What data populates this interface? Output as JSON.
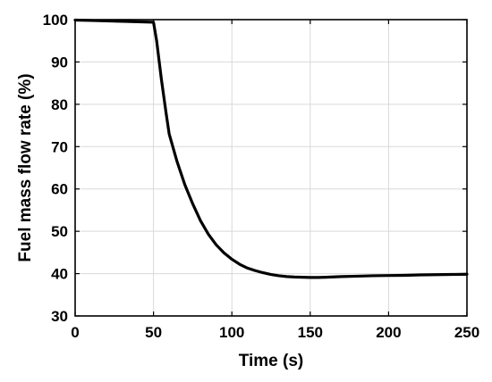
{
  "chart_data": {
    "type": "line",
    "title": "",
    "xlabel": "Time (s)",
    "ylabel": "Fuel mass flow rate (%)",
    "xlim": [
      0,
      250
    ],
    "ylim": [
      30,
      100
    ],
    "xticks": [
      0,
      50,
      100,
      150,
      200,
      250
    ],
    "yticks": [
      30,
      40,
      50,
      60,
      70,
      80,
      90,
      100
    ],
    "grid": true,
    "legend": "none",
    "series": [
      {
        "color": "#000000",
        "x": [
          0,
          10,
          20,
          30,
          40,
          50,
          52,
          55,
          58,
          60,
          65,
          70,
          75,
          80,
          85,
          90,
          95,
          100,
          105,
          110,
          115,
          120,
          125,
          130,
          135,
          140,
          145,
          150,
          155,
          160,
          170,
          180,
          190,
          200,
          210,
          220,
          230,
          240,
          250
        ],
        "y": [
          99.9,
          99.8,
          99.7,
          99.6,
          99.5,
          99.4,
          95,
          86,
          78,
          73,
          66.5,
          61,
          56.5,
          52.5,
          49.3,
          46.8,
          44.9,
          43.4,
          42.2,
          41.3,
          40.7,
          40.2,
          39.8,
          39.5,
          39.3,
          39.2,
          39.15,
          39.1,
          39.1,
          39.15,
          39.3,
          39.4,
          39.5,
          39.55,
          39.6,
          39.7,
          39.75,
          39.8,
          39.85
        ]
      }
    ]
  }
}
